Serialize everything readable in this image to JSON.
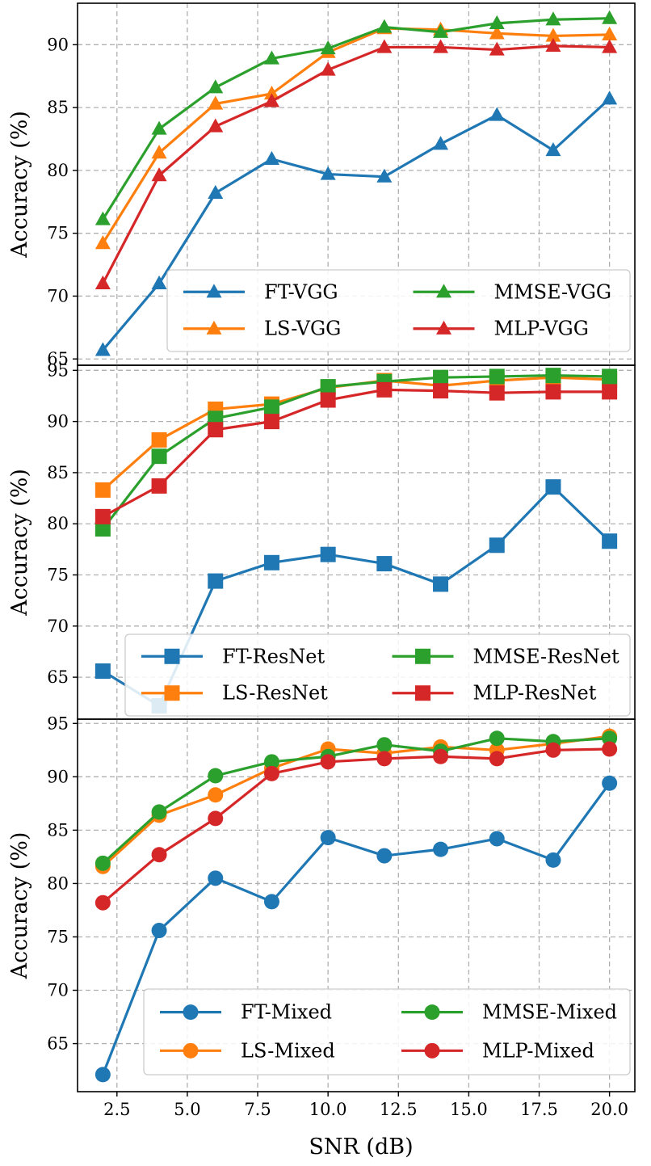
{
  "chart_data": [
    {
      "type": "line",
      "marker": "triangle",
      "ylabel": "Accuracy (%)",
      "xlabel": "",
      "xlim": [
        1.1,
        20.9
      ],
      "ylim": [
        64.5,
        93.3
      ],
      "yticks": [
        65,
        70,
        75,
        80,
        85,
        90
      ],
      "ytick_labels": [
        "65",
        "70",
        "75",
        "80",
        "85",
        "90"
      ],
      "xticks": [],
      "xtick_labels": [],
      "grid": true,
      "legend": "lower-right, 2 columns",
      "x": [
        2,
        4,
        6,
        8,
        10,
        12,
        14,
        16,
        18,
        20
      ],
      "series": [
        {
          "name": "FT-VGG",
          "color": "#1f77b4",
          "values": [
            65.7,
            71.0,
            78.2,
            80.9,
            79.7,
            79.5,
            82.1,
            84.4,
            81.6,
            85.7
          ]
        },
        {
          "name": "LS-VGG",
          "color": "#ff7f0e",
          "values": [
            74.2,
            81.4,
            85.3,
            86.1,
            89.4,
            91.3,
            91.2,
            90.9,
            90.7,
            90.8
          ]
        },
        {
          "name": "MMSE-VGG",
          "color": "#2ca02c",
          "values": [
            76.1,
            83.3,
            86.6,
            88.9,
            89.7,
            91.4,
            91.0,
            91.7,
            92.0,
            92.1
          ]
        },
        {
          "name": "MLP-VGG",
          "color": "#d62728",
          "values": [
            71.0,
            79.6,
            83.5,
            85.5,
            88.0,
            89.8,
            89.8,
            89.6,
            89.9,
            89.8
          ]
        }
      ],
      "legend_order": [
        "FT-VGG",
        "MMSE-VGG",
        "LS-VGG",
        "MLP-VGG"
      ]
    },
    {
      "type": "line",
      "marker": "square",
      "ylabel": "Accuracy (%)",
      "xlabel": "",
      "xlim": [
        1.1,
        20.9
      ],
      "ylim": [
        60.9,
        95.5
      ],
      "yticks": [
        65,
        70,
        75,
        80,
        85,
        90,
        95
      ],
      "ytick_labels": [
        "65",
        "70",
        "75",
        "80",
        "85",
        "90",
        "95"
      ],
      "xticks": [],
      "xtick_labels": [],
      "grid": true,
      "legend": "lower-right, 2 columns",
      "x": [
        2,
        4,
        6,
        8,
        10,
        12,
        14,
        16,
        18,
        20
      ],
      "series": [
        {
          "name": "FT-ResNet",
          "color": "#1f77b4",
          "values": [
            65.6,
            62.2,
            74.4,
            76.2,
            77.0,
            76.1,
            74.1,
            77.9,
            83.6,
            78.3
          ]
        },
        {
          "name": "LS-ResNet",
          "color": "#ff7f0e",
          "values": [
            83.3,
            88.2,
            91.2,
            91.7,
            93.3,
            94.0,
            93.5,
            94.0,
            94.3,
            94.1
          ]
        },
        {
          "name": "MMSE-ResNet",
          "color": "#2ca02c",
          "values": [
            79.5,
            86.6,
            90.3,
            91.4,
            93.4,
            93.9,
            94.3,
            94.4,
            94.5,
            94.4
          ]
        },
        {
          "name": "MLP-ResNet",
          "color": "#d62728",
          "values": [
            80.7,
            83.7,
            89.2,
            90.0,
            92.1,
            93.1,
            93.0,
            92.8,
            92.9,
            92.9
          ]
        }
      ],
      "legend_order": [
        "FT-ResNet",
        "MMSE-ResNet",
        "LS-ResNet",
        "MLP-ResNet"
      ]
    },
    {
      "type": "line",
      "marker": "circle",
      "ylabel": "Accuracy (%)",
      "xlabel": "SNR (dB)",
      "xlim": [
        1.1,
        20.9
      ],
      "ylim": [
        60.5,
        95.4
      ],
      "yticks": [
        65,
        70,
        75,
        80,
        85,
        90,
        95
      ],
      "ytick_labels": [
        "65",
        "70",
        "75",
        "80",
        "85",
        "90",
        "95"
      ],
      "xticks": [
        2.5,
        5.0,
        7.5,
        10.0,
        12.5,
        15.0,
        17.5,
        20.0
      ],
      "xtick_labels": [
        "2.5",
        "5.0",
        "7.5",
        "10.0",
        "12.5",
        "15.0",
        "17.5",
        "20.0"
      ],
      "grid": true,
      "legend": "lower-right, 2 columns",
      "x": [
        2,
        4,
        6,
        8,
        10,
        12,
        14,
        16,
        18,
        20
      ],
      "series": [
        {
          "name": "FT-Mixed",
          "color": "#1f77b4",
          "values": [
            62.1,
            75.6,
            80.5,
            78.3,
            84.3,
            82.6,
            83.2,
            84.2,
            82.2,
            89.4
          ]
        },
        {
          "name": "LS-Mixed",
          "color": "#ff7f0e",
          "values": [
            81.6,
            86.4,
            88.3,
            90.8,
            92.6,
            92.2,
            92.8,
            92.5,
            93.1,
            93.8
          ]
        },
        {
          "name": "MMSE-Mixed",
          "color": "#2ca02c",
          "values": [
            81.9,
            86.7,
            90.1,
            91.4,
            91.9,
            93.0,
            92.4,
            93.6,
            93.3,
            93.6
          ]
        },
        {
          "name": "MLP-Mixed",
          "color": "#d62728",
          "values": [
            78.2,
            82.7,
            86.1,
            90.3,
            91.4,
            91.7,
            91.9,
            91.7,
            92.5,
            92.6
          ]
        }
      ],
      "legend_order": [
        "FT-Mixed",
        "MMSE-Mixed",
        "LS-Mixed",
        "MLP-Mixed"
      ]
    }
  ]
}
